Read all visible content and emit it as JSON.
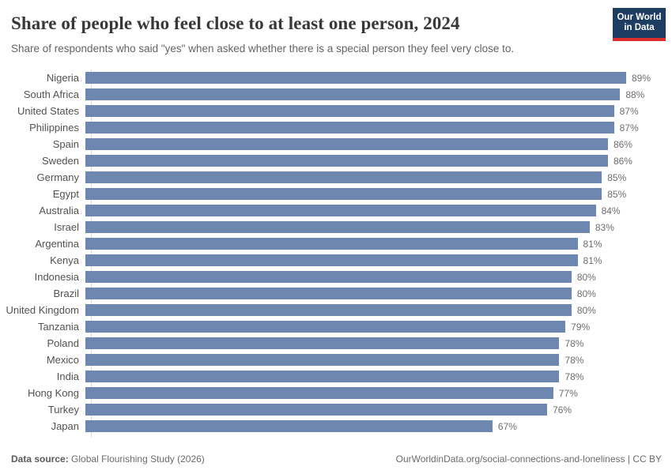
{
  "header": {
    "title": "Share of people who feel close to at least one person, 2024",
    "subtitle": "Share of respondents who said \"yes\" when asked whether there is a special person they feel very close to.",
    "logo": {
      "line1": "Our World",
      "line2": "in Data",
      "bg_color": "#1d3d63",
      "stripe_color": "#dc2e2c"
    }
  },
  "chart_data": {
    "type": "bar",
    "orientation": "horizontal",
    "title": "Share of people who feel close to at least one person, 2024",
    "xlabel": "",
    "ylabel": "",
    "categories": [
      "Nigeria",
      "South Africa",
      "United States",
      "Philippines",
      "Spain",
      "Sweden",
      "Germany",
      "Egypt",
      "Australia",
      "Israel",
      "Argentina",
      "Kenya",
      "Indonesia",
      "Brazil",
      "United Kingdom",
      "Tanzania",
      "Poland",
      "Mexico",
      "India",
      "Hong Kong",
      "Turkey",
      "Japan"
    ],
    "values": [
      89,
      88,
      87,
      87,
      86,
      86,
      85,
      85,
      84,
      83,
      81,
      81,
      80,
      80,
      80,
      79,
      78,
      78,
      78,
      77,
      76,
      67
    ],
    "value_suffix": "%",
    "xlim": [
      0,
      89
    ],
    "grid": false,
    "legend": "none",
    "value_labels": "end-of-bar",
    "bar_color": "#6d87b0",
    "axis_line_color": "#dcdcdc"
  },
  "footer": {
    "source_label": "Data source:",
    "source_value": "Global Flourishing Study (2026)",
    "right_text": "OurWorldinData.org/social-connections-and-loneliness | CC BY"
  }
}
